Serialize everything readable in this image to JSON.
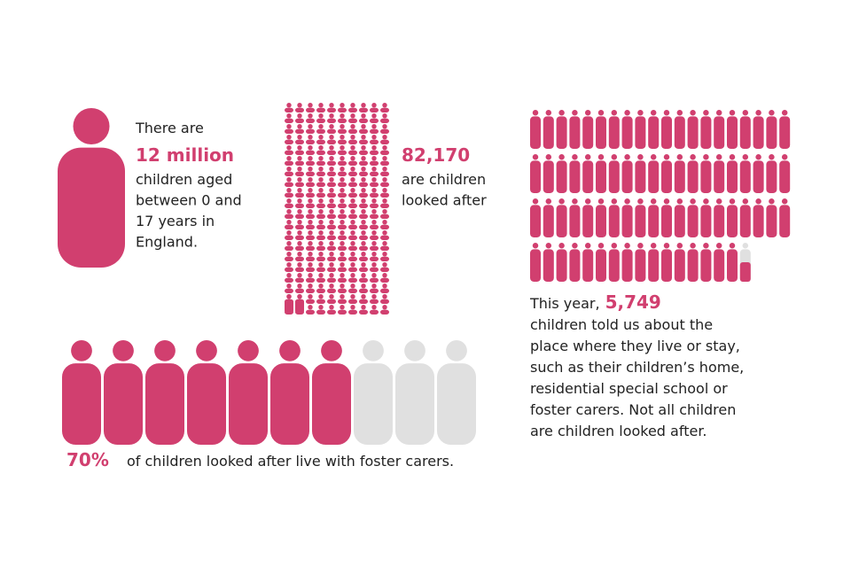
{
  "panels": [
    {
      "lead": "There are",
      "highlight": "12 million",
      "lines": [
        "children aged",
        "between 0 and",
        "17 years in",
        "England."
      ]
    },
    {
      "highlight": "82,170",
      "lines": [
        "are children",
        "looked after"
      ]
    },
    {
      "lead": "This year,",
      "highlight": "5,749",
      "lines": [
        "children told us about the",
        "place where they live or stay,",
        "such as their children’s home,",
        "residential special school or",
        "foster carers. Not all children",
        "are children looked after."
      ]
    },
    {
      "highlight": "70%",
      "text": "of children looked after live with foster carers."
    }
  ]
}
